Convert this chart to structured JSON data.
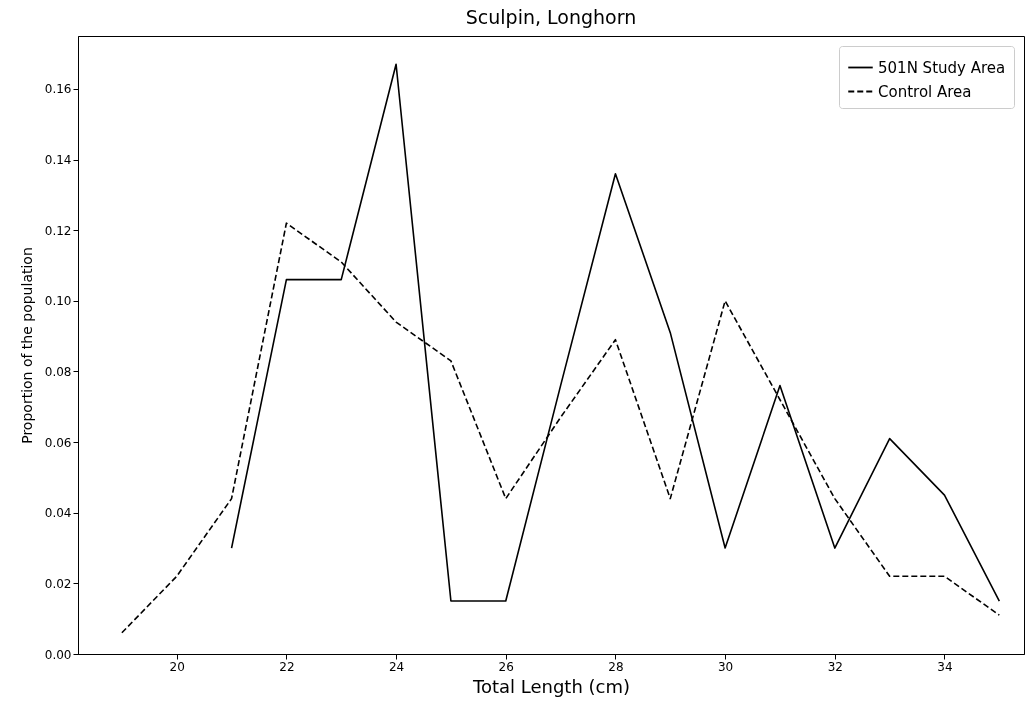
{
  "chart_data": {
    "type": "line",
    "title": "Sculpin, Longhorn",
    "xlabel": "Total Length (cm)",
    "ylabel": "Proportion of the population",
    "x": [
      19,
      20,
      21,
      22,
      23,
      24,
      25,
      26,
      27,
      28,
      29,
      30,
      31,
      32,
      33,
      34,
      35
    ],
    "series": [
      {
        "name": "501N Study Area",
        "color": "#000000",
        "line_style": "solid",
        "values": [
          null,
          null,
          0.03,
          0.106,
          0.106,
          0.167,
          0.015,
          0.015,
          0.076,
          0.136,
          0.091,
          0.03,
          0.076,
          0.03,
          0.061,
          0.045,
          0.015
        ]
      },
      {
        "name": "Control Area",
        "color": "#000000",
        "line_style": "dashed",
        "values": [
          0.006,
          0.022,
          0.044,
          0.122,
          0.111,
          0.094,
          0.083,
          0.044,
          0.067,
          0.089,
          0.044,
          0.1,
          0.072,
          0.044,
          0.022,
          0.022,
          0.011
        ]
      }
    ],
    "xlim": [
      18.2,
      35.45
    ],
    "ylim": [
      0,
      0.175
    ],
    "xticks": [
      20,
      22,
      24,
      26,
      28,
      30,
      32,
      34
    ],
    "yticks": [
      {
        "value": 0,
        "label": "0.00"
      },
      {
        "value": 0.02,
        "label": "0.02"
      },
      {
        "value": 0.04,
        "label": "0.04"
      },
      {
        "value": 0.06,
        "label": "0.06"
      },
      {
        "value": 0.08,
        "label": "0.08"
      },
      {
        "value": 0.1,
        "label": "0.10"
      },
      {
        "value": 0.12,
        "label": "0.12"
      },
      {
        "value": 0.14,
        "label": "0.14"
      },
      {
        "value": 0.16,
        "label": "0.16"
      }
    ],
    "legend": "top right"
  }
}
